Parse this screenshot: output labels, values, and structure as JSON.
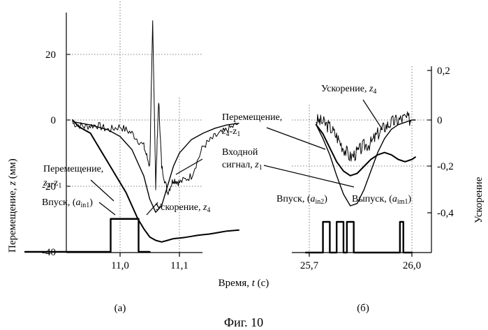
{
  "figure": {
    "caption": "Фиг. 10",
    "xlabel_prefix": "Время, ",
    "xlabel_var": "t",
    "xlabel_suffix": " (с)",
    "ylabel_left_prefix": "Перемещение, ",
    "ylabel_left_var": "z",
    "ylabel_left_suffix": " (мм)",
    "ylabel_right": "Ускорение"
  },
  "chart_data": [
    {
      "type": "line",
      "panel": "(a)",
      "x_ticks": [
        "11,0",
        "11,1"
      ],
      "x_tick_values": [
        11.0,
        11.1
      ],
      "xlim": [
        10.84,
        11.21
      ],
      "y_left_ticks": [
        "20",
        "0",
        "-20",
        "-40"
      ],
      "y_left_tick_values": [
        20,
        0,
        -20,
        -40
      ],
      "ylim_left": [
        -40,
        31
      ],
      "grid": true,
      "annotations": {
        "disp": {
          "pre": "Перемещение,",
          "line2_a": "z",
          "line2_a_sub": "4",
          "line2_b": "-z",
          "line2_b_sub": "1"
        },
        "intake": {
          "pre": "Впуск, (",
          "var": "a",
          "sub": "in1",
          "post": ")"
        },
        "accel": {
          "pre": "Ускорение, ",
          "var": "z",
          "sub": "4"
        }
      },
      "series": [
        {
          "x": [
            10.92,
            10.93,
            10.95,
            10.96,
            10.97,
            10.98,
            10.99,
            11.0,
            11.01,
            11.02,
            11.03,
            11.04,
            11.05,
            11.06,
            11.07,
            11.08,
            11.09,
            11.1,
            11.11,
            11.12,
            11.13,
            11.14,
            11.15,
            11.16,
            11.17,
            11.18,
            11.2
          ],
          "y": [
            0,
            -2,
            -4,
            -7,
            -10,
            -13,
            -16,
            -19,
            -22,
            -26,
            -30,
            -33,
            -35.5,
            -36.5,
            -37,
            -36.5,
            -36,
            -35.8,
            -35.6,
            -35.3,
            -35,
            -34.8,
            -34.6,
            -34.3,
            -34,
            -33.7,
            -33.4
          ]
        },
        {
          "x": [
            10.92,
            10.95,
            10.98,
            11.0,
            11.02,
            11.04,
            11.05,
            11.06,
            11.07,
            11.08,
            11.09,
            11.1,
            11.12,
            11.14,
            11.16,
            11.18,
            11.2
          ],
          "y": [
            -0.5,
            -1.5,
            -3,
            -5,
            -9,
            -17,
            -24,
            -28,
            -26,
            -20,
            -14,
            -10,
            -6,
            -4,
            -2.5,
            -1.5,
            -1
          ]
        },
        {
          "x": [
            10.92,
            10.94,
            10.96,
            10.98,
            11.0,
            11.02,
            11.04,
            11.05,
            11.055,
            11.06,
            11.065,
            11.07,
            11.08,
            11.09,
            11.1,
            11.12,
            11.14,
            11.16,
            11.18,
            11.2
          ],
          "y": [
            -1,
            -2,
            -1.5,
            -3,
            -2,
            -4,
            -8,
            -14,
            30,
            -20,
            6,
            -14,
            -22,
            -18,
            -19,
            -17,
            -8,
            -5,
            -3,
            -1
          ]
        }
      ],
      "intake_pulse": {
        "x": [
          11.01,
          11.05
        ],
        "levels": [
          -40,
          -30
        ]
      }
    },
    {
      "type": "line",
      "panel": "(б)",
      "x_ticks": [
        "25,7",
        "26,0"
      ],
      "x_tick_values": [
        25.7,
        26.0
      ],
      "xlim": [
        25.69,
        26.03
      ],
      "y_right_ticks": [
        "0,2",
        "0",
        "-0,2",
        "-0,4"
      ],
      "y_right_tick_values": [
        0.2,
        0,
        -0.2,
        -0.4
      ],
      "ylim_right": [
        -0.4,
        0.2
      ],
      "grid": true,
      "annotations": {
        "accel": {
          "pre": "Ускорение, ",
          "var": "z",
          "sub": "4"
        },
        "disp": {
          "pre": "Перемещение,",
          "line2_a": "z",
          "line2_a_sub": "4",
          "line2_b": "-z",
          "line2_b_sub": "1"
        },
        "input": {
          "line1": "Входной",
          "line2_pre": "сигнал, ",
          "var": "z",
          "sub": "1"
        },
        "intake": {
          "pre": "Впуск, (",
          "var": "a",
          "sub": "in2",
          "post": ")"
        },
        "exhaust": {
          "pre": "Выпуск, (",
          "var": "a",
          "sub": "im1",
          "post": ")"
        }
      },
      "series": [
        {
          "x": [
            25.72,
            25.74,
            25.76,
            25.78,
            25.8,
            25.82,
            25.84,
            25.86,
            25.88,
            25.9,
            25.92,
            25.94,
            25.96,
            25.98,
            26.0,
            26.01
          ],
          "y": [
            -0.02,
            -0.06,
            -0.12,
            -0.18,
            -0.22,
            -0.24,
            -0.23,
            -0.2,
            -0.17,
            -0.15,
            -0.14,
            -0.15,
            -0.17,
            -0.18,
            -0.17,
            -0.16
          ]
        },
        {
          "x": [
            25.72,
            25.74,
            25.76,
            25.78,
            25.8,
            25.82,
            25.84,
            25.86,
            25.88,
            25.9,
            25.92,
            25.94,
            25.96,
            25.98,
            26.0,
            26.01
          ],
          "y": [
            -0.02,
            -0.08,
            -0.15,
            -0.24,
            -0.32,
            -0.37,
            -0.36,
            -0.3,
            -0.22,
            -0.14,
            -0.08,
            -0.04,
            -0.02,
            -0.01,
            0,
            0
          ]
        },
        {
          "x": [
            25.72,
            25.74,
            25.76,
            25.78,
            25.8,
            25.82,
            25.84,
            25.86,
            25.88,
            25.9,
            25.92,
            25.94,
            25.96,
            25.98,
            26.0
          ],
          "y": [
            0,
            -0.01,
            -0.03,
            -0.07,
            -0.12,
            -0.16,
            -0.14,
            -0.11,
            -0.1,
            -0.06,
            -0.03,
            -0.01,
            0,
            0.01,
            0
          ]
        }
      ],
      "pulses": [
        {
          "x": [
            25.74,
            25.76
          ]
        },
        {
          "x": [
            25.78,
            25.8
          ]
        },
        {
          "x": [
            25.81,
            25.83
          ]
        },
        {
          "x": [
            25.965,
            25.975
          ]
        }
      ]
    }
  ]
}
